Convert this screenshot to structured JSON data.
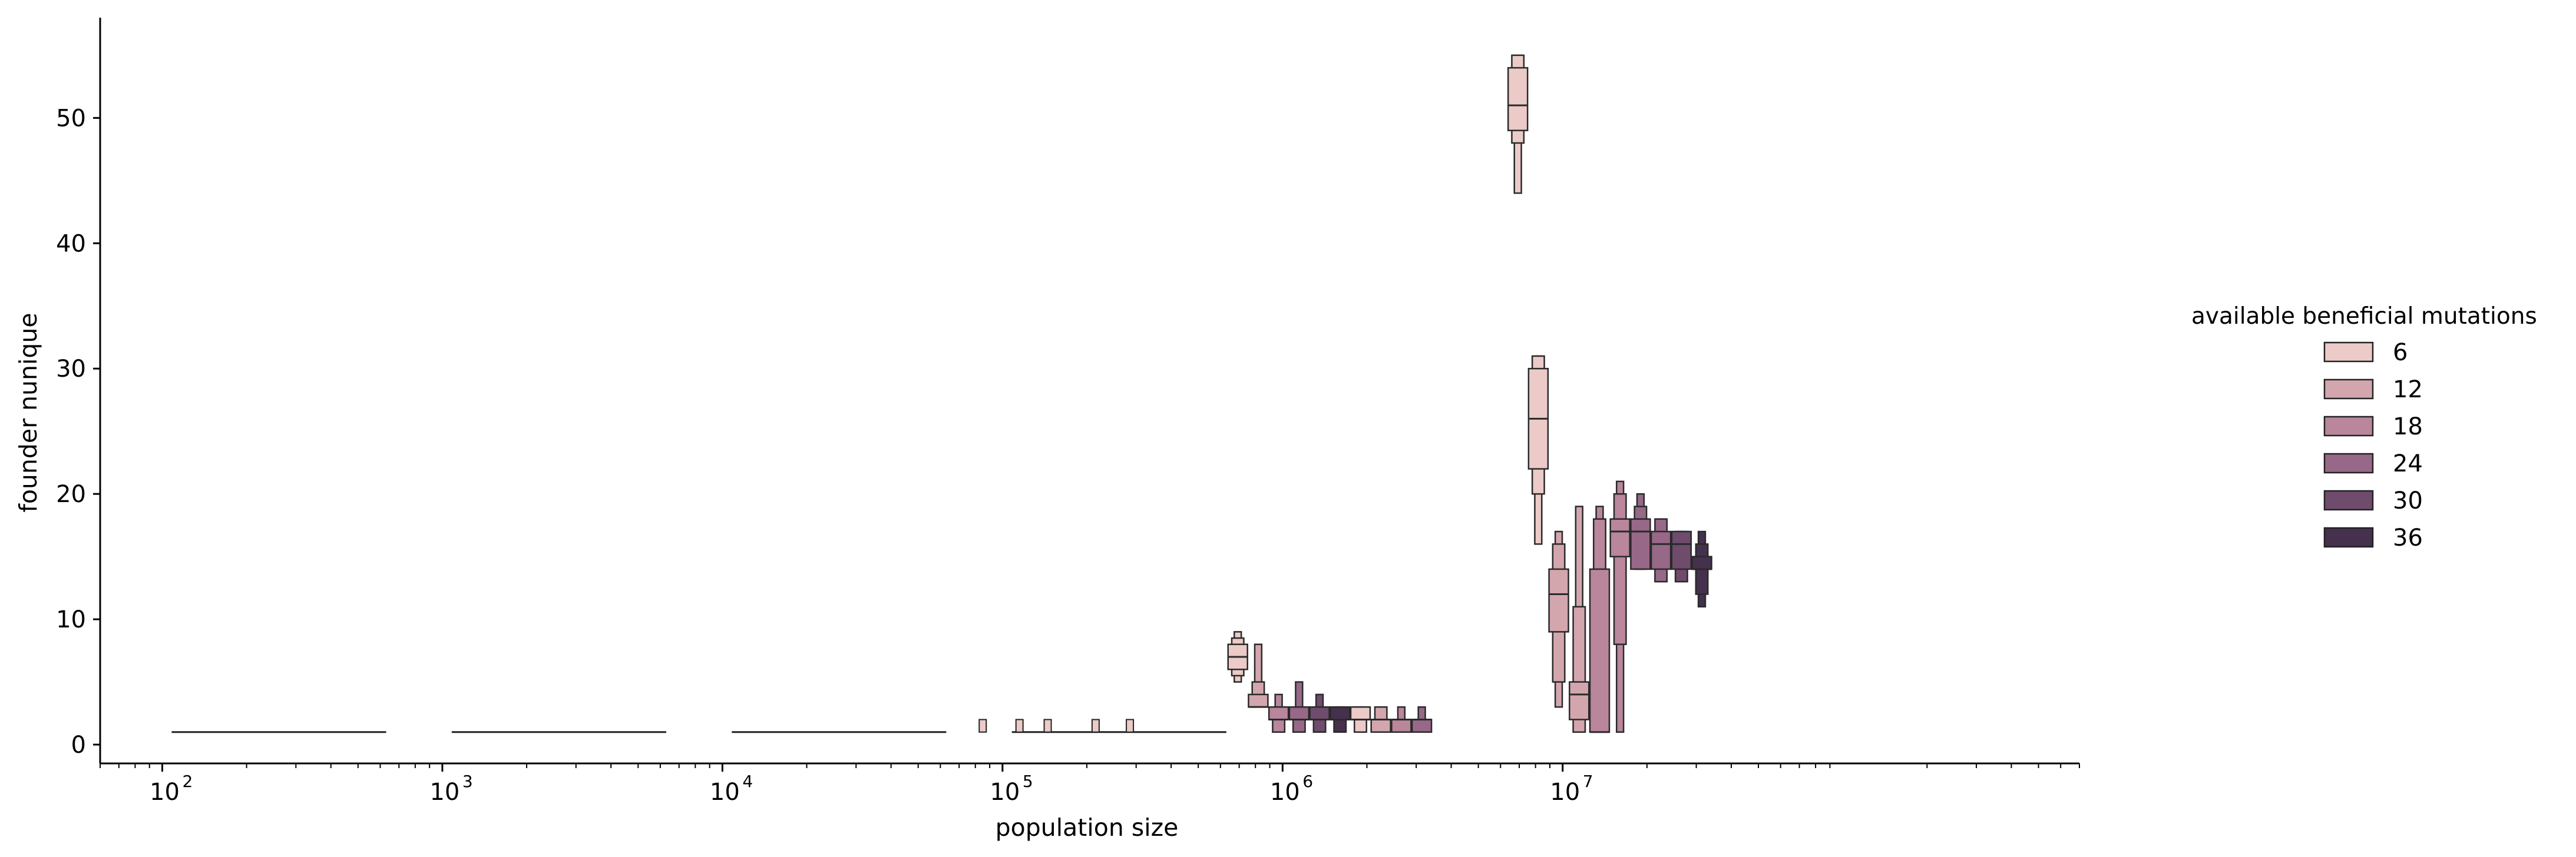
{
  "chart_data": {
    "type": "boxen",
    "xlabel": "population size",
    "ylabel": "founder nunique",
    "x_scale": "log",
    "xlim": [
      60,
      700000000
    ],
    "ylim": [
      -1.5,
      58
    ],
    "x_tick_values": [
      100,
      1000,
      10000,
      100000,
      1000000,
      10000000
    ],
    "x_tick_labels": [
      "10",
      "10",
      "10",
      "10",
      "10",
      "10"
    ],
    "x_tick_exponents": [
      "2",
      "3",
      "4",
      "5",
      "6",
      "7"
    ],
    "y_ticks": [
      0,
      10,
      20,
      30,
      40,
      50
    ],
    "y_tick_labels": [
      "0",
      "10",
      "20",
      "30",
      "40",
      "50"
    ],
    "grid": false,
    "legend": {
      "title": "available beneficial mutations",
      "placement": "right",
      "entries": [
        "6",
        "12",
        "18",
        "24",
        "30",
        "36"
      ],
      "colors": [
        "#ebcac7",
        "#d3a6ae",
        "#b9869c",
        "#976887",
        "#6f4b6c",
        "#45304e"
      ]
    },
    "flat_groups": [
      {
        "population_size": 100,
        "value": 1
      },
      {
        "population_size": 1000,
        "value": 1
      },
      {
        "population_size": 10000,
        "value": 1
      },
      {
        "population_size": 100000,
        "value": 1,
        "outlier_max": [
          2,
          2,
          2,
          2,
          2
        ]
      }
    ],
    "series": [
      {
        "population_size": 1000000,
        "boxes": [
          {
            "mutations": "6",
            "median": 7,
            "levels": [
              [
                6,
                8
              ],
              [
                5.5,
                8.5
              ],
              [
                5,
                9
              ]
            ]
          },
          {
            "mutations": "12",
            "median": 3,
            "levels": [
              [
                3,
                4
              ],
              [
                3,
                5
              ],
              [
                3,
                8
              ]
            ]
          },
          {
            "mutations": "18",
            "median": 2,
            "levels": [
              [
                2,
                3
              ],
              [
                1,
                3
              ],
              [
                1,
                4
              ]
            ]
          },
          {
            "mutations": "24",
            "median": 2,
            "levels": [
              [
                2,
                3
              ],
              [
                1,
                3
              ],
              [
                1,
                5
              ]
            ]
          },
          {
            "mutations": "30",
            "median": 2,
            "levels": [
              [
                2,
                3
              ],
              [
                1,
                3
              ],
              [
                1,
                4
              ]
            ]
          },
          {
            "mutations": "36",
            "median": 2,
            "levels": [
              [
                2,
                3
              ],
              [
                1,
                3
              ],
              [
                1,
                3
              ]
            ]
          },
          {
            "mutations": "6b",
            "median": 2,
            "levels": [
              [
                2,
                3
              ],
              [
                1,
                3
              ],
              [
                1,
                3
              ]
            ]
          },
          {
            "mutations": "12b",
            "median": 2,
            "levels": [
              [
                1,
                2
              ],
              [
                1,
                3
              ],
              [
                1,
                3
              ]
            ]
          },
          {
            "mutations": "18b",
            "median": 2,
            "levels": [
              [
                1,
                2
              ],
              [
                1,
                2
              ],
              [
                1,
                3
              ]
            ]
          },
          {
            "mutations": "24b",
            "median": 2,
            "levels": [
              [
                1,
                2
              ],
              [
                1,
                2
              ],
              [
                1,
                3
              ]
            ]
          }
        ]
      },
      {
        "population_size": 10000000,
        "boxes": [
          {
            "mutations": "6",
            "median": 51,
            "levels": [
              [
                49,
                54
              ],
              [
                48,
                55
              ],
              [
                44,
                55
              ]
            ]
          },
          {
            "mutations": "6b",
            "median": 26,
            "levels": [
              [
                22,
                30
              ],
              [
                20,
                31
              ],
              [
                16,
                31
              ]
            ]
          },
          {
            "mutations": "12",
            "median": 12,
            "levels": [
              [
                9,
                14
              ],
              [
                5,
                16
              ],
              [
                3,
                17
              ]
            ]
          },
          {
            "mutations": "12b",
            "median": 4,
            "levels": [
              [
                2,
                5
              ],
              [
                1,
                11
              ],
              [
                1,
                19
              ]
            ]
          },
          {
            "mutations": "18",
            "median": 1,
            "levels": [
              [
                1,
                14
              ],
              [
                1,
                18
              ],
              [
                1,
                19
              ]
            ]
          },
          {
            "mutations": "18b",
            "median": 17,
            "levels": [
              [
                15,
                18
              ],
              [
                8,
                20
              ],
              [
                1,
                21
              ]
            ]
          },
          {
            "mutations": "24",
            "median": 17,
            "levels": [
              [
                14,
                18
              ],
              [
                14,
                19
              ],
              [
                14,
                20
              ]
            ]
          },
          {
            "mutations": "24b",
            "median": 16,
            "levels": [
              [
                14,
                17
              ],
              [
                13,
                18
              ],
              [
                13,
                18
              ]
            ]
          },
          {
            "mutations": "30",
            "median": 16,
            "levels": [
              [
                14,
                17
              ],
              [
                13,
                17
              ],
              [
                13,
                17
              ]
            ]
          },
          {
            "mutations": "36",
            "median": 14,
            "levels": [
              [
                14,
                15
              ],
              [
                12,
                16
              ],
              [
                11,
                17
              ]
            ]
          }
        ]
      }
    ]
  }
}
